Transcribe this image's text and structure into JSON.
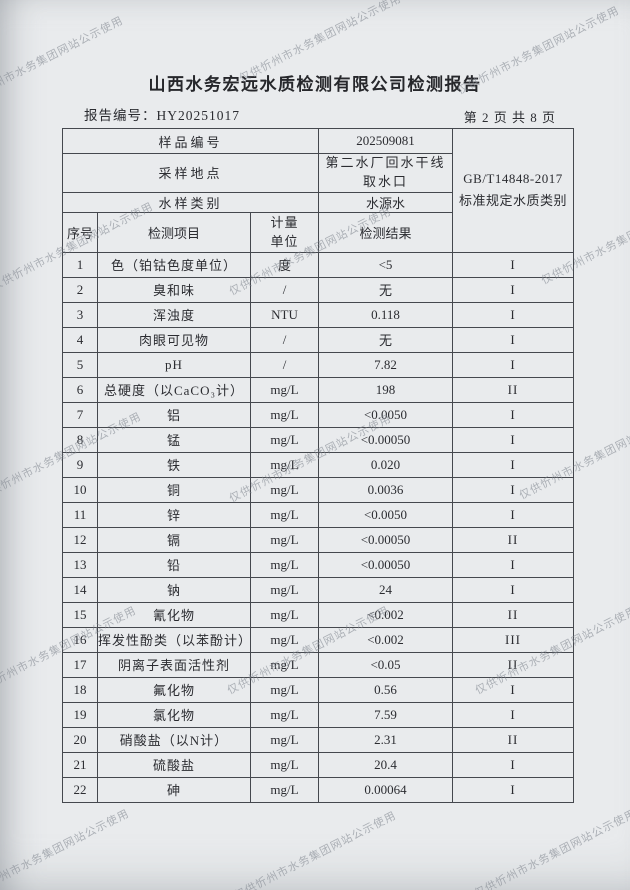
{
  "page": {
    "title": "山西水务宏远水质检测有限公司检测报告",
    "report_no_line": "报告编号：HY20251017",
    "page_indicator": "第 2 页 共 8 页"
  },
  "watermark": {
    "text": "仅供忻州市水务集团网站公示使用"
  },
  "sample_info": {
    "rows": [
      {
        "label": "样品编号",
        "value": "202509081"
      },
      {
        "label": "采样地点",
        "value": "第二水厂回水干线取水口"
      },
      {
        "label": "水样类别",
        "value": "水源水"
      }
    ],
    "standard_line1": "GB/T14848-2017",
    "standard_line2": "标准规定水质类别"
  },
  "table": {
    "headers": [
      "序号",
      "检测项目",
      "计量单位",
      "检测结果"
    ],
    "rows": [
      {
        "no": "1",
        "item": "色（铂钴色度单位）",
        "unit": "度",
        "result": "<5",
        "grade": "I"
      },
      {
        "no": "2",
        "item": "臭和味",
        "unit": "/",
        "result": "无",
        "grade": "I"
      },
      {
        "no": "3",
        "item": "浑浊度",
        "unit": "NTU",
        "result": "0.118",
        "grade": "I"
      },
      {
        "no": "4",
        "item": "肉眼可见物",
        "unit": "/",
        "result": "无",
        "grade": "I"
      },
      {
        "no": "5",
        "item": "pH",
        "unit": "/",
        "result": "7.82",
        "grade": "I"
      },
      {
        "no": "6",
        "item": "总硬度（以CaCO₃计）",
        "unit": "mg/L",
        "result": "198",
        "grade": "II"
      },
      {
        "no": "7",
        "item": "铝",
        "unit": "mg/L",
        "result": "<0.0050",
        "grade": "I"
      },
      {
        "no": "8",
        "item": "锰",
        "unit": "mg/L",
        "result": "<0.00050",
        "grade": "I"
      },
      {
        "no": "9",
        "item": "铁",
        "unit": "mg/L",
        "result": "0.020",
        "grade": "I"
      },
      {
        "no": "10",
        "item": "铜",
        "unit": "mg/L",
        "result": "0.0036",
        "grade": "I"
      },
      {
        "no": "11",
        "item": "锌",
        "unit": "mg/L",
        "result": "<0.0050",
        "grade": "I"
      },
      {
        "no": "12",
        "item": "镉",
        "unit": "mg/L",
        "result": "<0.00050",
        "grade": "II"
      },
      {
        "no": "13",
        "item": "铅",
        "unit": "mg/L",
        "result": "<0.00050",
        "grade": "I"
      },
      {
        "no": "14",
        "item": "钠",
        "unit": "mg/L",
        "result": "24",
        "grade": "I"
      },
      {
        "no": "15",
        "item": "氰化物",
        "unit": "mg/L",
        "result": "<0.002",
        "grade": "II"
      },
      {
        "no": "16",
        "item": "挥发性酚类（以苯酚计）",
        "unit": "mg/L",
        "result": "<0.002",
        "grade": "III"
      },
      {
        "no": "17",
        "item": "阴离子表面活性剂",
        "unit": "mg/L",
        "result": "<0.05",
        "grade": "II"
      },
      {
        "no": "18",
        "item": "氟化物",
        "unit": "mg/L",
        "result": "0.56",
        "grade": "I"
      },
      {
        "no": "19",
        "item": "氯化物",
        "unit": "mg/L",
        "result": "7.59",
        "grade": "I"
      },
      {
        "no": "20",
        "item": "硝酸盐（以N计）",
        "unit": "mg/L",
        "result": "2.31",
        "grade": "II"
      },
      {
        "no": "21",
        "item": "硫酸盐",
        "unit": "mg/L",
        "result": "20.4",
        "grade": "I"
      },
      {
        "no": "22",
        "item": "砷",
        "unit": "mg/L",
        "result": "0.00064",
        "grade": "I"
      }
    ]
  }
}
